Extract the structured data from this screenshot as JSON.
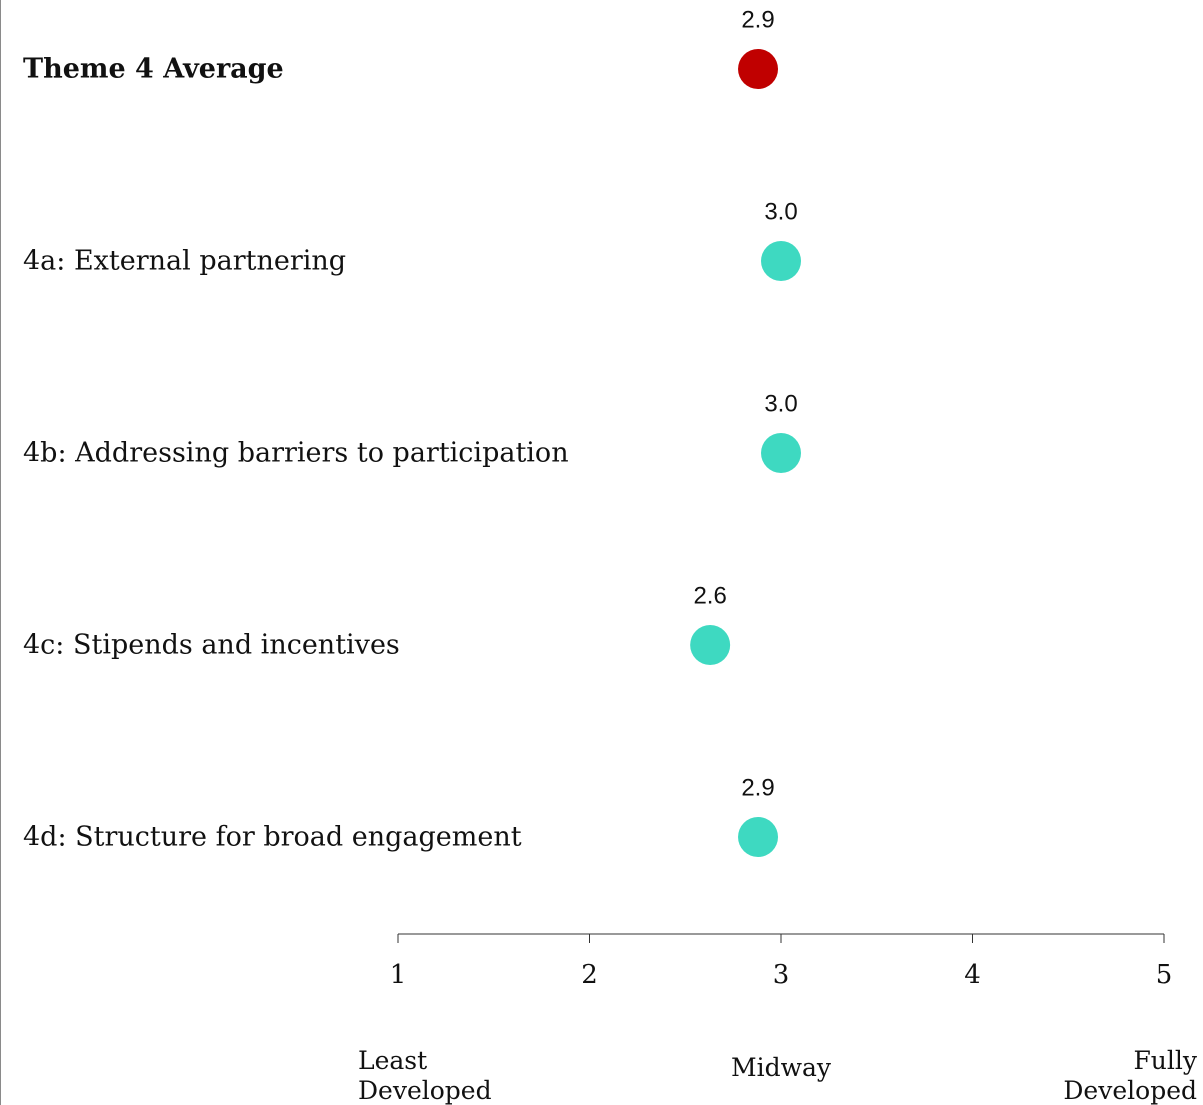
{
  "chart_data": {
    "type": "scatter",
    "title": "",
    "xlabel": "",
    "ylabel": "",
    "xlim": [
      1,
      5
    ],
    "grid": false,
    "legend": "none",
    "xticks": [
      "1",
      "2",
      "3",
      "4",
      "5"
    ],
    "scale_labels": [
      {
        "x": 1,
        "lines": [
          "Least",
          "Developed"
        ],
        "align": "start"
      },
      {
        "x": 3,
        "lines": [
          "Midway"
        ],
        "align": "middle"
      },
      {
        "x": 5,
        "lines": [
          "Fully",
          "Developed"
        ],
        "align": "end"
      }
    ],
    "points": [
      {
        "label": "Theme 4 Average",
        "value": 2.88,
        "value_label": "2.9",
        "emphasis": true,
        "color": "#c00000"
      },
      {
        "label": "4a: External partnering",
        "value": 3.0,
        "value_label": "3.0",
        "emphasis": false,
        "color": "#3ed9c1"
      },
      {
        "label": "4b: Addressing barriers to participation",
        "value": 3.0,
        "value_label": "3.0",
        "emphasis": false,
        "color": "#3ed9c1"
      },
      {
        "label": "4c: Stipends and incentives",
        "value": 2.63,
        "value_label": "2.6",
        "emphasis": false,
        "color": "#3ed9c1"
      },
      {
        "label": "4d: Structure for broad engagement",
        "value": 2.88,
        "value_label": "2.9",
        "emphasis": false,
        "color": "#3ed9c1"
      }
    ]
  }
}
